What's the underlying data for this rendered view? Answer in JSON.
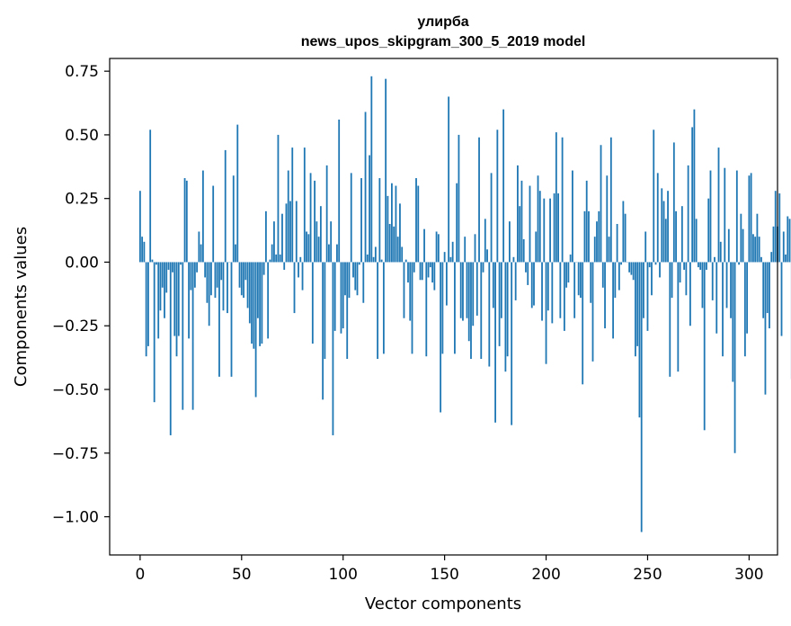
{
  "chart_data": {
    "type": "bar",
    "title": "улирба",
    "subtitle": "news_upos_skipgram_300_5_2019 model",
    "xlabel": "Vector components",
    "ylabel": "Components values",
    "xlim": [
      -15,
      314
    ],
    "ylim": [
      -1.15,
      0.8
    ],
    "xticks": [
      0,
      50,
      100,
      150,
      200,
      250,
      300
    ],
    "xtick_labels": [
      "0",
      "50",
      "100",
      "150",
      "200",
      "250",
      "300"
    ],
    "yticks": [
      0.75,
      0.5,
      0.25,
      0.0,
      -0.25,
      -0.5,
      -0.75,
      -1.0
    ],
    "ytick_labels": [
      "0.75",
      "0.50",
      "0.25",
      "0.00",
      "−0.25",
      "−0.50",
      "−0.75",
      "−1.00"
    ],
    "bar_color": "#1f77b4",
    "grid": false,
    "values": [
      0.28,
      0.1,
      0.08,
      -0.37,
      -0.33,
      0.52,
      0.01,
      -0.55,
      -0.01,
      -0.3,
      -0.19,
      -0.1,
      -0.22,
      -0.12,
      -0.03,
      -0.68,
      -0.04,
      -0.29,
      -0.37,
      -0.29,
      -0.01,
      -0.58,
      0.33,
      0.32,
      -0.3,
      -0.11,
      -0.58,
      -0.1,
      -0.04,
      0.12,
      0.07,
      0.36,
      -0.06,
      -0.16,
      -0.25,
      -0.13,
      0.3,
      -0.14,
      -0.1,
      -0.45,
      -0.07,
      -0.19,
      0.44,
      -0.2,
      0.0,
      -0.45,
      0.34,
      0.07,
      0.54,
      -0.1,
      -0.13,
      -0.14,
      -0.07,
      -0.18,
      -0.24,
      -0.32,
      -0.34,
      -0.53,
      -0.22,
      -0.33,
      -0.32,
      -0.05,
      0.2,
      -0.3,
      0.01,
      0.07,
      0.16,
      0.03,
      0.5,
      0.03,
      0.19,
      -0.03,
      0.23,
      0.36,
      0.24,
      0.45,
      -0.2,
      0.24,
      -0.06,
      0.02,
      -0.11,
      0.45,
      0.12,
      0.11,
      0.35,
      -0.32,
      0.32,
      0.16,
      0.1,
      0.22,
      -0.54,
      -0.38,
      0.38,
      0.07,
      0.16,
      -0.68,
      -0.27,
      0.07,
      0.56,
      -0.28,
      -0.26,
      -0.13,
      -0.38,
      -0.14,
      0.35,
      -0.06,
      -0.11,
      -0.13,
      -0.01,
      0.33,
      -0.16,
      0.59,
      0.03,
      0.42,
      0.73,
      0.02,
      0.06,
      -0.38,
      0.33,
      0.01,
      -0.36,
      0.72,
      0.26,
      0.15,
      0.31,
      0.14,
      0.3,
      0.1,
      0.23,
      0.06,
      -0.22,
      0.01,
      -0.08,
      -0.23,
      -0.36,
      -0.04,
      0.33,
      0.3,
      -0.07,
      -0.07,
      0.13,
      -0.37,
      -0.06,
      -0.02,
      -0.08,
      -0.11,
      0.12,
      0.11,
      -0.59,
      -0.36,
      0.04,
      -0.17,
      0.65,
      0.02,
      0.08,
      -0.36,
      0.31,
      0.5,
      -0.22,
      -0.23,
      0.1,
      -0.22,
      -0.31,
      -0.38,
      -0.25,
      0.11,
      -0.21,
      0.49,
      -0.38,
      -0.04,
      0.17,
      0.05,
      -0.41,
      0.35,
      -0.18,
      -0.63,
      0.52,
      -0.33,
      -0.22,
      0.6,
      -0.43,
      -0.37,
      0.16,
      -0.64,
      0.02,
      -0.15,
      0.38,
      0.22,
      0.32,
      0.09,
      -0.04,
      -0.09,
      0.3,
      -0.18,
      -0.17,
      0.12,
      0.34,
      0.28,
      -0.23,
      0.25,
      -0.4,
      -0.19,
      0.25,
      -0.24,
      0.27,
      0.51,
      0.27,
      -0.22,
      0.49,
      -0.27,
      -0.1,
      -0.08,
      0.03,
      0.36,
      -0.22,
      0.0,
      -0.13,
      -0.14,
      -0.48,
      0.2,
      0.32,
      0.2,
      -0.16,
      -0.39,
      0.1,
      0.16,
      0.2,
      0.46,
      -0.1,
      -0.26,
      0.34,
      0.1,
      0.49,
      -0.3,
      -0.14,
      0.15,
      -0.11,
      -0.01,
      0.24,
      0.19,
      0.0,
      -0.04,
      -0.05,
      -0.07,
      -0.37,
      -0.33,
      -0.61,
      -1.06,
      -0.22,
      0.12,
      -0.27,
      -0.02,
      -0.13,
      0.52,
      -0.01,
      0.35,
      -0.06,
      0.29,
      0.24,
      0.17,
      0.28,
      -0.45,
      -0.14,
      0.47,
      0.2,
      -0.43,
      -0.08,
      0.22,
      -0.03,
      -0.13,
      0.38,
      -0.25,
      0.53,
      0.6,
      0.17,
      -0.02,
      -0.03,
      -0.18,
      -0.66,
      -0.03,
      0.25,
      0.36,
      -0.15,
      0.02,
      -0.28,
      0.45,
      0.08,
      -0.37,
      0.37,
      -0.18,
      0.13,
      -0.22,
      -0.47,
      -0.75,
      0.36,
      -0.01,
      0.19,
      0.13,
      -0.37,
      -0.28,
      0.34,
      0.35,
      0.11,
      0.1,
      0.19,
      0.1,
      0.02,
      -0.22,
      -0.52,
      -0.2,
      -0.26,
      0.04,
      0.14,
      0.28,
      0.14,
      0.27,
      -0.29,
      0.12,
      0.03,
      0.18,
      0.17,
      -0.46,
      0.17
    ]
  }
}
